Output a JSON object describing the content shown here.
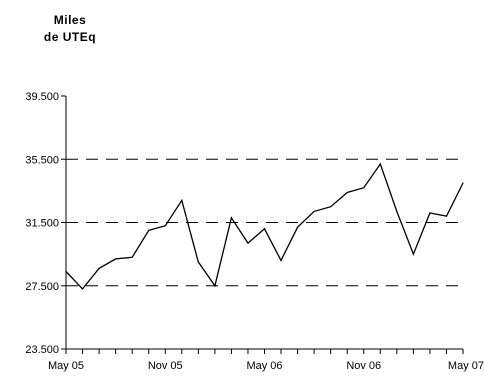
{
  "chart_data": {
    "type": "line",
    "ylabel_lines": [
      "Miles",
      "de UTEq"
    ],
    "ylim": [
      23500,
      39500
    ],
    "yticks": [
      23500,
      27500,
      31500,
      35500,
      39500
    ],
    "ytick_labels": [
      "23.500",
      "27.500",
      "31.500",
      "35.500",
      "39.500"
    ],
    "gridlines": [
      27500,
      31500,
      35500
    ],
    "grid_style": "dashed",
    "x_labels": [
      {
        "index": 0,
        "label": "May 05"
      },
      {
        "index": 6,
        "label": "Nov 05"
      },
      {
        "index": 12,
        "label": "May 06"
      },
      {
        "index": 18,
        "label": "Nov 06"
      },
      {
        "index": 24,
        "label": "May 07"
      }
    ],
    "series": [
      {
        "x": [
          "May 05",
          "Jun 05",
          "Jul 05",
          "Aug 05",
          "Sep 05",
          "Oct 05",
          "Nov 05",
          "Dec 05",
          "Jan 06",
          "Feb 06",
          "Mar 06",
          "Apr 06",
          "May 06",
          "Jun 06",
          "Jul 06",
          "Aug 06",
          "Sep 06",
          "Oct 06",
          "Nov 06",
          "Dec 06",
          "Jan 07",
          "Feb 07",
          "Mar 07",
          "Apr 07",
          "May 07"
        ],
        "values": [
          28400,
          27300,
          28600,
          29200,
          29300,
          31000,
          31300,
          32900,
          29000,
          27500,
          31800,
          30200,
          31100,
          29100,
          31200,
          32200,
          32500,
          33400,
          33700,
          35200,
          32200,
          29500,
          32100,
          31900,
          34000
        ]
      }
    ]
  }
}
